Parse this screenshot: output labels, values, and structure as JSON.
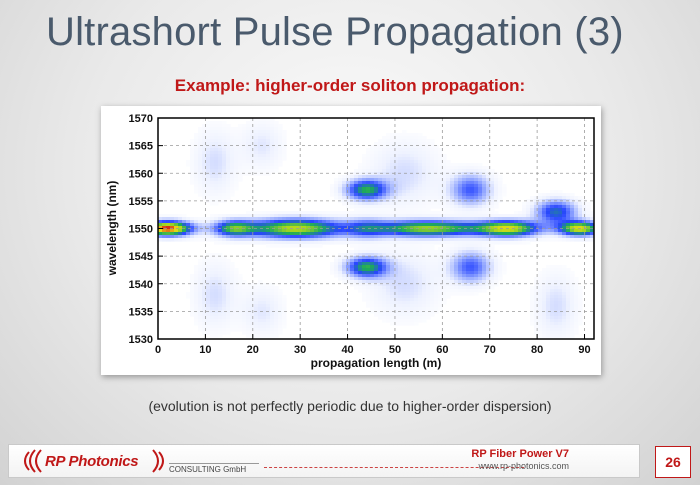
{
  "slide": {
    "title": "Ultrashort Pulse Propagation (3)",
    "subtitle": "Example: higher-order soliton propagation:",
    "caption": "(evolution is not perfectly periodic due to higher-order dispersion)"
  },
  "footer": {
    "logo": "RP Photonics",
    "tagline": "CONSULTING GmbH",
    "product": "RP Fiber Power V7",
    "website": "www.rp-photonics.com",
    "page_number": "26"
  },
  "colors": {
    "title": "#4a5a6c",
    "accent_red": "#c01818",
    "heat_low": "#ffffff",
    "heat_mid": "#2a4cff",
    "heat_high": "#c81010"
  },
  "chart_data": {
    "type": "heatmap",
    "title": "",
    "xlabel": "propagation length (m)",
    "ylabel": "wavelength (nm)",
    "xlim": [
      0,
      92
    ],
    "ylim": [
      1530,
      1570
    ],
    "x_ticks": [
      "0",
      "10",
      "20",
      "30",
      "40",
      "50",
      "60",
      "70",
      "80",
      "90"
    ],
    "x_tick_values": [
      0,
      10,
      20,
      30,
      40,
      50,
      60,
      70,
      80,
      90
    ],
    "y_ticks": [
      "1530",
      "1535",
      "1540",
      "1545",
      "1550",
      "1555",
      "1560",
      "1565",
      "1570"
    ],
    "y_tick_values": [
      1530,
      1535,
      1540,
      1545,
      1550,
      1555,
      1560,
      1565,
      1570
    ],
    "grid": true,
    "colormap": "white-blue-green-yellow-red",
    "features": [
      {
        "x": 2,
        "y": 1550,
        "sx": 3.5,
        "sy": 0.9,
        "intensity": 1.0
      },
      {
        "x": 16,
        "y": 1550,
        "sx": 3,
        "sy": 1.0,
        "intensity": 0.55
      },
      {
        "x": 29,
        "y": 1550,
        "sx": 7,
        "sy": 1.2,
        "intensity": 0.75
      },
      {
        "x": 44,
        "y": 1550,
        "sx": 3,
        "sy": 1.3,
        "intensity": 0.25
      },
      {
        "x": 44,
        "y": 1557,
        "sx": 3,
        "sy": 1.3,
        "intensity": 0.55
      },
      {
        "x": 44,
        "y": 1543,
        "sx": 3,
        "sy": 1.3,
        "intensity": 0.55
      },
      {
        "x": 57,
        "y": 1550,
        "sx": 8,
        "sy": 1.0,
        "intensity": 0.7
      },
      {
        "x": 74,
        "y": 1550,
        "sx": 4.5,
        "sy": 1.0,
        "intensity": 0.75
      },
      {
        "x": 84,
        "y": 1553,
        "sx": 3,
        "sy": 1.5,
        "intensity": 0.45
      },
      {
        "x": 89,
        "y": 1550,
        "sx": 3,
        "sy": 0.9,
        "intensity": 0.8
      },
      {
        "x": 12,
        "y": 1562,
        "sx": 3,
        "sy": 4,
        "intensity": 0.12
      },
      {
        "x": 12,
        "y": 1538,
        "sx": 3,
        "sy": 4,
        "intensity": 0.12
      },
      {
        "x": 22,
        "y": 1565,
        "sx": 3,
        "sy": 3,
        "intensity": 0.1
      },
      {
        "x": 22,
        "y": 1535,
        "sx": 3,
        "sy": 3,
        "intensity": 0.1
      },
      {
        "x": 66,
        "y": 1557,
        "sx": 3,
        "sy": 2,
        "intensity": 0.35
      },
      {
        "x": 66,
        "y": 1543,
        "sx": 3,
        "sy": 2,
        "intensity": 0.35
      },
      {
        "x": 52,
        "y": 1560,
        "sx": 5,
        "sy": 4,
        "intensity": 0.12
      },
      {
        "x": 52,
        "y": 1540,
        "sx": 5,
        "sy": 4,
        "intensity": 0.12
      },
      {
        "x": 84,
        "y": 1536,
        "sx": 3,
        "sy": 4,
        "intensity": 0.12
      }
    ]
  }
}
